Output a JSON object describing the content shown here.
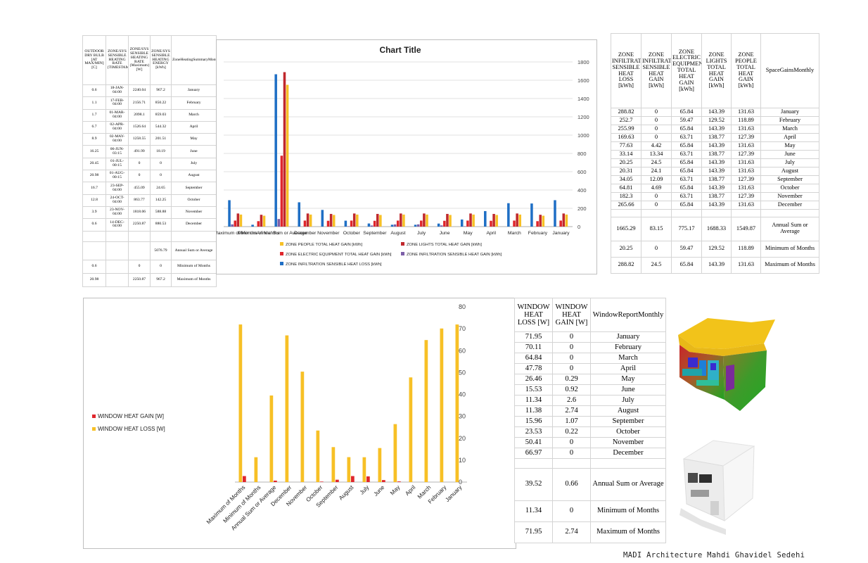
{
  "table1": {
    "headers": [
      "OUTDOOR DRY BULB [AT MAX/MIN] [C]",
      "ZONE/SYS SENSIBLE HEATING RATE {TIMESTAMP}",
      "ZONE/SYS SENSIBLE HEATING RATE {Maximum}[W]",
      "ZONE/SYS SENSIBLE HEATING ENERGY [kWh]",
      "ZoneHeatingSummaryMonthly"
    ],
    "rows": [
      [
        "0.6",
        "18-JAN-04:00",
        "2240.04",
        "967.2",
        "January"
      ],
      [
        "1.1",
        "17-FEB-04:00",
        "2156.71",
        "850.22",
        "February"
      ],
      [
        "1.7",
        "01-MAR-04:00",
        "2098.1",
        "859.03",
        "March"
      ],
      [
        "6.7",
        "02-APR-04:00",
        "1526.64",
        "544.32",
        "April"
      ],
      [
        "8.9",
        "02-MAY-04:00",
        "1258.55",
        "201.51",
        "May"
      ],
      [
        "16.25",
        "06-JUN-03:15",
        "491.99",
        "18.19",
        "June"
      ],
      [
        "20.45",
        "01-JUL-00:15",
        "0",
        "0",
        "July"
      ],
      [
        "20.98",
        "01-AUG-00:15",
        "0",
        "0",
        "August"
      ],
      [
        "16.7",
        "23-SEP-04:00",
        "455.09",
        "24.65",
        "September"
      ],
      [
        "12.8",
        "24-OCT-04:00",
        "863.77",
        "142.25",
        "October"
      ],
      [
        "3.9",
        "23-NOV-04:00",
        "1818.06",
        "588.88",
        "November"
      ],
      [
        "0.6",
        "14-DEC-04:00",
        "2250.87",
        "880.53",
        "December"
      ]
    ],
    "summary": [
      [
        "",
        "",
        "",
        "5076.79",
        "Annual Sum or Average"
      ],
      [
        "0.6",
        "",
        "0",
        "0",
        "Minimum of Months"
      ],
      [
        "20.98",
        "",
        "2250.87",
        "967.2",
        "Maximum of Months"
      ]
    ]
  },
  "table2": {
    "headers": [
      "ZONE INFILTRATION SENSIBLE HEAT LOSS [kWh]",
      "ZONE INFILTRATION SENSIBLE HEAT GAIN [kWh]",
      "ZONE ELECTRIC EQUIPMENT TOTAL HEAT GAIN [kWh]",
      "ZONE LIGHTS TOTAL HEAT GAIN [kWh]",
      "ZONE PEOPLE TOTAL HEAT GAIN [kWh]",
      "SpaceGainsMonthly"
    ],
    "rows": [
      [
        "288.82",
        "0",
        "65.84",
        "143.39",
        "131.63",
        "January"
      ],
      [
        "252.7",
        "0",
        "59.47",
        "129.52",
        "118.89",
        "February"
      ],
      [
        "255.99",
        "0",
        "65.84",
        "143.39",
        "131.63",
        "March"
      ],
      [
        "169.63",
        "0",
        "63.71",
        "138.77",
        "127.39",
        "April"
      ],
      [
        "77.63",
        "4.42",
        "65.84",
        "143.39",
        "131.63",
        "May"
      ],
      [
        "33.14",
        "13.34",
        "63.71",
        "138.77",
        "127.39",
        "June"
      ],
      [
        "20.25",
        "24.5",
        "65.84",
        "143.39",
        "131.63",
        "July"
      ],
      [
        "20.31",
        "24.1",
        "65.84",
        "143.39",
        "131.63",
        "August"
      ],
      [
        "34.05",
        "12.09",
        "63.71",
        "138.77",
        "127.39",
        "September"
      ],
      [
        "64.81",
        "4.69",
        "65.84",
        "143.39",
        "131.63",
        "October"
      ],
      [
        "182.3",
        "0",
        "63.71",
        "138.77",
        "127.39",
        "November"
      ],
      [
        "265.66",
        "0",
        "65.84",
        "143.39",
        "131.63",
        "December"
      ]
    ],
    "summary": [
      [
        "1665.29",
        "83.15",
        "775.17",
        "1688.33",
        "1549.87",
        "Annual Sum or Average"
      ],
      [
        "20.25",
        "0",
        "59.47",
        "129.52",
        "118.89",
        "Minimum of Months"
      ],
      [
        "288.82",
        "24.5",
        "65.84",
        "143.39",
        "131.63",
        "Maximum of Months"
      ]
    ]
  },
  "table3": {
    "headers": [
      "WINDOW HEAT LOSS [W]",
      "WINDOW HEAT GAIN [W]",
      "WindowReportMonthly"
    ],
    "rows": [
      [
        "71.95",
        "0",
        "January"
      ],
      [
        "70.11",
        "0",
        "February"
      ],
      [
        "64.84",
        "0",
        "March"
      ],
      [
        "47.78",
        "0",
        "April"
      ],
      [
        "26.46",
        "0.29",
        "May"
      ],
      [
        "15.53",
        "0.92",
        "June"
      ],
      [
        "11.34",
        "2.6",
        "July"
      ],
      [
        "11.38",
        "2.74",
        "August"
      ],
      [
        "15.96",
        "1.07",
        "September"
      ],
      [
        "23.53",
        "0.22",
        "October"
      ],
      [
        "50.41",
        "0",
        "November"
      ],
      [
        "66.97",
        "0",
        "December"
      ]
    ],
    "summary": [
      [
        "39.52",
        "0.66",
        "Annual Sum or Average"
      ],
      [
        "11.34",
        "0",
        "Minimum of Months"
      ],
      [
        "71.95",
        "2.74",
        "Maximum of Months"
      ]
    ]
  },
  "chart_data": [
    {
      "type": "bar",
      "title": "Chart Title",
      "categories": [
        "Maximum of Months",
        "Minimum of Months",
        "Annual Sum or Average",
        "December",
        "November",
        "October",
        "September",
        "August",
        "July",
        "June",
        "May",
        "April",
        "March",
        "February",
        "January"
      ],
      "series": [
        {
          "name": "ZONE INFILTRATION SENSIBLE HEAT LOSS [kWh]",
          "color": "#1f6fc5",
          "values": [
            288.82,
            20.25,
            1665.29,
            265.66,
            182.3,
            64.81,
            34.05,
            20.31,
            20.25,
            33.14,
            77.63,
            169.63,
            255.99,
            252.7,
            288.82
          ]
        },
        {
          "name": "ZONE INFILTRATION SENSIBLE HEAT GAIN [kWh]",
          "color": "#7d5fa8",
          "values": [
            24.5,
            0,
            83.15,
            0,
            0,
            4.69,
            12.09,
            24.1,
            24.5,
            13.34,
            4.42,
            0,
            0,
            0,
            0
          ]
        },
        {
          "name": "ZONE ELECTRIC EQUIPMENT TOTAL HEAT GAIN [kWh]",
          "color": "#e0262c",
          "values": [
            65.84,
            59.47,
            775.17,
            65.84,
            63.71,
            65.84,
            63.71,
            65.84,
            65.84,
            63.71,
            65.84,
            63.71,
            65.84,
            59.47,
            65.84
          ]
        },
        {
          "name": "ZONE LIGHTS TOTAL HEAT GAIN [kWh]",
          "color": "#c0282d",
          "values": [
            143.39,
            129.52,
            1688.33,
            143.39,
            138.77,
            143.39,
            138.77,
            143.39,
            143.39,
            138.77,
            143.39,
            138.77,
            143.39,
            129.52,
            143.39
          ]
        },
        {
          "name": "ZONE PEOPLE TOTAL HEAT GAIN [kWh]",
          "color": "#f7c026",
          "values": [
            131.63,
            118.89,
            1549.87,
            131.63,
            127.39,
            131.63,
            127.39,
            131.63,
            131.63,
            127.39,
            131.63,
            127.39,
            131.63,
            118.89,
            131.63
          ]
        }
      ],
      "legend_order": [
        "ZONE PEOPLE TOTAL HEAT GAIN [kWh]",
        "ZONE LIGHTS TOTAL HEAT GAIN [kWh]",
        "ZONE ELECTRIC EQUIPMENT TOTAL HEAT GAIN [kWh]",
        "ZONE INFILTRATION SENSIBLE HEAT GAIN [kWh]",
        "ZONE INFILTRATION SENSIBLE HEAT LOSS [kWh]"
      ],
      "ylim": [
        0,
        1800
      ],
      "yticks": [
        0,
        200,
        400,
        600,
        800,
        1000,
        1200,
        1400,
        1600,
        1800
      ],
      "y_axis_side": "right",
      "grid": true,
      "legend": "bottom"
    },
    {
      "type": "bar",
      "title": "",
      "categories": [
        "Maximum of Months",
        "Minimum of Months",
        "Annual Sum or Average",
        "December",
        "November",
        "October",
        "September",
        "August",
        "July",
        "June",
        "May",
        "April",
        "March",
        "February",
        "January"
      ],
      "series": [
        {
          "name": "WINDOW HEAT LOSS [W]",
          "color": "#f7c026",
          "values": [
            71.95,
            11.34,
            39.52,
            66.97,
            50.41,
            23.53,
            15.96,
            11.38,
            11.34,
            15.53,
            26.46,
            47.78,
            64.84,
            70.11,
            71.95
          ]
        },
        {
          "name": "WINDOW HEAT GAIN [W]",
          "color": "#e0262c",
          "values": [
            2.74,
            0,
            0.66,
            0,
            0,
            0.22,
            1.07,
            2.74,
            2.6,
            0.92,
            0.29,
            0,
            0,
            0,
            0
          ]
        }
      ],
      "legend_order": [
        "WINDOW HEAT GAIN [W]",
        "WINDOW HEAT LOSS [W]"
      ],
      "ylim": [
        0,
        80
      ],
      "yticks": [
        0,
        10,
        20,
        30,
        40,
        50,
        60,
        70,
        80
      ],
      "y_axis_side": "right",
      "grid": false,
      "legend": "left"
    }
  ],
  "credit": "MADI Architecture Mahdi Ghavidel Sedehi"
}
